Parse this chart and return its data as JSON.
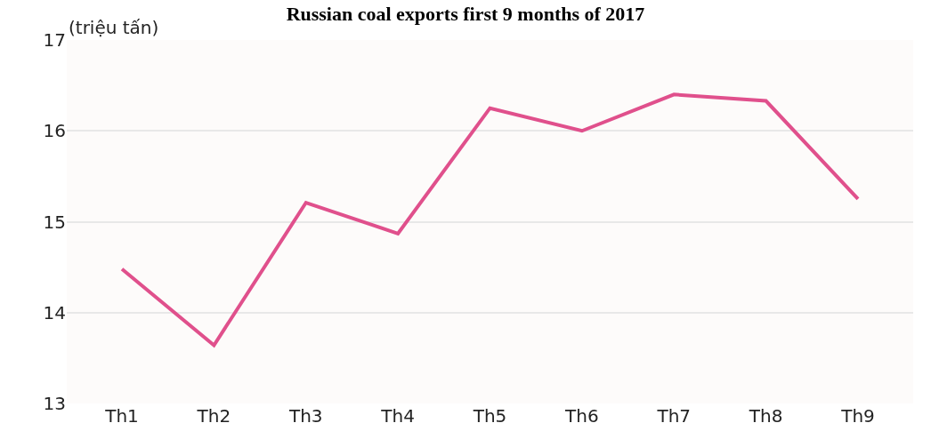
{
  "chart_data": {
    "type": "line",
    "title": "Russian coal exports first 9 months of 2017",
    "ylabel": "(triệu tấn)",
    "categories": [
      "Th1",
      "Th2",
      "Th3",
      "Th4",
      "Th5",
      "Th6",
      "Th7",
      "Th8",
      "Th9"
    ],
    "series": [
      {
        "color": "#e0508c",
        "values": [
          14.48,
          13.64,
          15.21,
          14.87,
          16.25,
          16.0,
          16.4,
          16.33,
          15.25
        ]
      }
    ],
    "ylim": [
      13,
      17
    ],
    "yticks": [
      13,
      14,
      15,
      16,
      17
    ],
    "grid": "y",
    "marker": "none",
    "line_style": "solid"
  }
}
